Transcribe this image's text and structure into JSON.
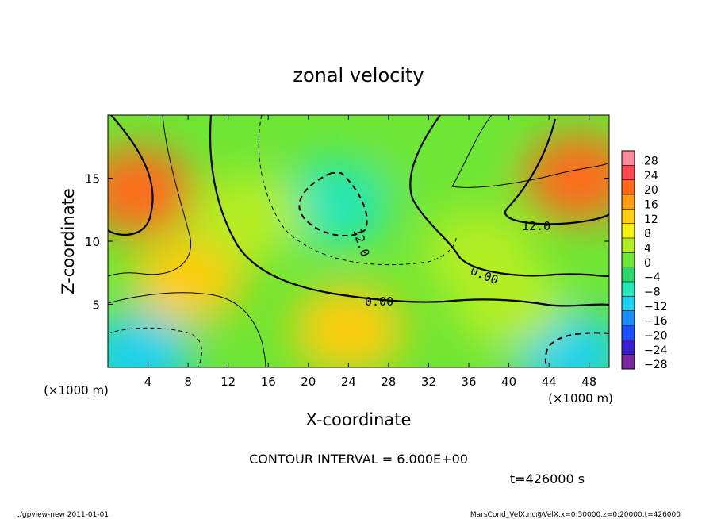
{
  "chart_data": {
    "type": "heatmap",
    "title": "zonal velocity",
    "xlabel": "X-coordinate",
    "ylabel": "Z-coordinate",
    "x_unit_label": "(×1000 m)",
    "x_unit_label_right": "(×1000 m)",
    "xlim": [
      0,
      50
    ],
    "ylim": [
      0,
      20
    ],
    "x_ticks": [
      4,
      8,
      12,
      16,
      20,
      24,
      28,
      32,
      36,
      40,
      44,
      48
    ],
    "y_ticks": [
      5,
      10,
      15
    ],
    "colorbar": {
      "levels": [
        28,
        24,
        20,
        16,
        12,
        8,
        4,
        0,
        -4,
        -8,
        -12,
        -16,
        -20,
        -24,
        -28
      ],
      "level_labels": [
        "28",
        "24",
        "20",
        "16",
        "12",
        "8",
        "4",
        "0",
        "−4",
        "−8",
        "−12",
        "−16",
        "−20",
        "−24",
        "−28"
      ]
    },
    "contour_interval_text": "CONTOUR INTERVAL = 6.000E+00",
    "contour_labels": [
      "12.0",
      "0.00",
      "0.00",
      "12.0"
    ],
    "time_text": "t=426000 s",
    "features": [
      {
        "x": 22.5,
        "z": 13.0,
        "value": -12
      },
      {
        "x": 3.0,
        "z": 14.0,
        "value": 16
      },
      {
        "x": 47.0,
        "z": 15.0,
        "value": 18
      },
      {
        "x": 3.0,
        "z": 1.0,
        "value": -14
      },
      {
        "x": 46.0,
        "z": 1.0,
        "value": -16
      },
      {
        "x": 24.0,
        "z": 3.0,
        "value": 10
      },
      {
        "x": 8.0,
        "z": 7.0,
        "value": 8
      },
      {
        "x": 40.0,
        "z": 5.0,
        "value": 0
      },
      {
        "x": 14.0,
        "z": 12.0,
        "value": 0
      },
      {
        "x": 33.0,
        "z": 17.0,
        "value": -2
      },
      {
        "x": 37.0,
        "z": 9.0,
        "value": 2
      }
    ]
  },
  "footer": {
    "left": "./gpview-new  2011-01-01",
    "right": "MarsCond_VelX.nc@VelX,x=0:50000,z=0:20000,t=426000"
  },
  "colors": {
    "scale": [
      "#7a2a9e",
      "#3a1fd0",
      "#1a50ff",
      "#1a8cff",
      "#19d2f0",
      "#22e6b8",
      "#2ad86a",
      "#6ee635",
      "#b4ee22",
      "#f5f010",
      "#ffcc10",
      "#ff9a12",
      "#ff6a1a",
      "#ff4850",
      "#ff8a9a"
    ]
  }
}
